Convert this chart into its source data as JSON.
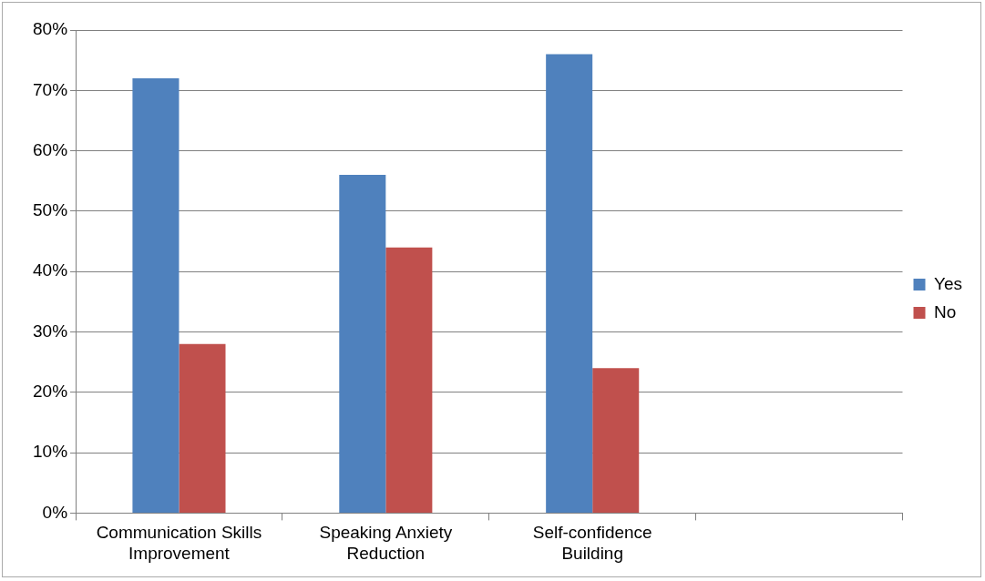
{
  "chart_data": {
    "type": "bar",
    "categories": [
      "Communication Skills Improvement",
      "Speaking Anxiety Reduction",
      "Self-confidence Building",
      null
    ],
    "series": [
      {
        "name": "Yes",
        "color": "#4f81bd",
        "values": [
          72,
          56,
          76,
          null
        ]
      },
      {
        "name": "No",
        "color": "#c0504d",
        "values": [
          28,
          44,
          24,
          null
        ]
      }
    ],
    "ylim": [
      0,
      80
    ],
    "yticks": [
      {
        "value": 0,
        "label": "0%"
      },
      {
        "value": 10,
        "label": "10%"
      },
      {
        "value": 20,
        "label": "20%"
      },
      {
        "value": 30,
        "label": "30%"
      },
      {
        "value": 40,
        "label": "40%"
      },
      {
        "value": 50,
        "label": "50%"
      },
      {
        "value": 60,
        "label": "60%"
      },
      {
        "value": 70,
        "label": "70%"
      },
      {
        "value": 80,
        "label": "80%"
      }
    ],
    "grid": "y",
    "legend": "right"
  }
}
